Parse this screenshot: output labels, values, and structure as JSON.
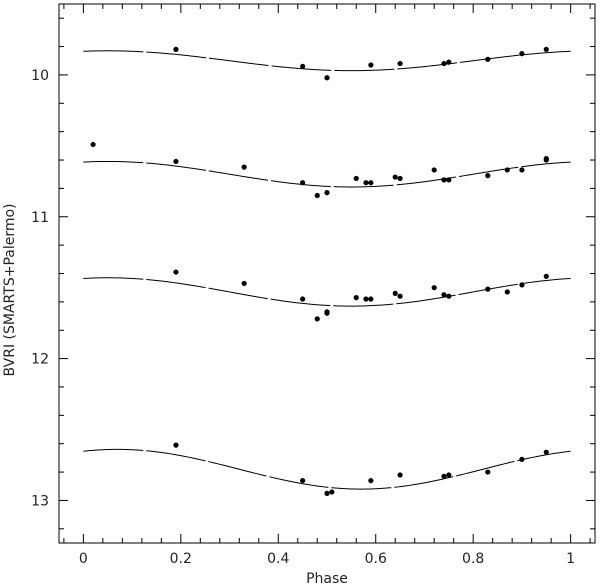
{
  "chart_data": {
    "type": "scatter",
    "title": "",
    "xlabel": "Phase",
    "ylabel": "BVRI (SMARTS+Palermo)",
    "xlim": [
      -0.05,
      1.05
    ],
    "ylim": [
      13.3,
      9.5
    ],
    "y_inverted": true,
    "grid": false,
    "legend": "none",
    "x_ticks": [
      "0",
      "0.2",
      "0.4",
      "0.6",
      "0.8",
      "1"
    ],
    "y_ticks": [
      "10",
      "11",
      "12",
      "13"
    ],
    "colors": {
      "points": "#000000",
      "curve": "#000000",
      "axis": "#000000"
    },
    "series": [
      {
        "points": [
          [
            0.19,
            9.82
          ],
          [
            0.45,
            9.94
          ],
          [
            0.5,
            10.02
          ],
          [
            0.59,
            9.93
          ],
          [
            0.65,
            9.92
          ],
          [
            0.74,
            9.92
          ],
          [
            0.75,
            9.91
          ],
          [
            0.83,
            9.89
          ],
          [
            0.9,
            9.85
          ],
          [
            0.95,
            9.82
          ]
        ],
        "fit": {
          "mean": 9.9,
          "amplitude": 0.07,
          "phase_min": 0.55
        }
      },
      {
        "points": [
          [
            0.02,
            10.49
          ],
          [
            0.19,
            10.61
          ],
          [
            0.33,
            10.65
          ],
          [
            0.45,
            10.76
          ],
          [
            0.48,
            10.85
          ],
          [
            0.5,
            10.83
          ],
          [
            0.56,
            10.73
          ],
          [
            0.58,
            10.76
          ],
          [
            0.59,
            10.76
          ],
          [
            0.64,
            10.72
          ],
          [
            0.65,
            10.73
          ],
          [
            0.72,
            10.67
          ],
          [
            0.74,
            10.74
          ],
          [
            0.75,
            10.74
          ],
          [
            0.83,
            10.71
          ],
          [
            0.87,
            10.67
          ],
          [
            0.9,
            10.67
          ],
          [
            0.95,
            10.59
          ],
          [
            0.95,
            10.6
          ]
        ],
        "fit": {
          "mean": 10.7,
          "amplitude": 0.09,
          "phase_min": 0.55
        }
      },
      {
        "points": [
          [
            0.19,
            11.39
          ],
          [
            0.33,
            11.47
          ],
          [
            0.45,
            11.58
          ],
          [
            0.48,
            11.72
          ],
          [
            0.5,
            11.68
          ],
          [
            0.5,
            11.67
          ],
          [
            0.56,
            11.57
          ],
          [
            0.58,
            11.58
          ],
          [
            0.59,
            11.58
          ],
          [
            0.64,
            11.54
          ],
          [
            0.65,
            11.56
          ],
          [
            0.72,
            11.5
          ],
          [
            0.74,
            11.55
          ],
          [
            0.75,
            11.56
          ],
          [
            0.83,
            11.51
          ],
          [
            0.87,
            11.53
          ],
          [
            0.9,
            11.48
          ],
          [
            0.95,
            11.42
          ]
        ],
        "fit": {
          "mean": 11.53,
          "amplitude": 0.1,
          "phase_min": 0.55
        }
      },
      {
        "points": [
          [
            0.19,
            12.61
          ],
          [
            0.45,
            12.86
          ],
          [
            0.5,
            12.95
          ],
          [
            0.51,
            12.94
          ],
          [
            0.59,
            12.86
          ],
          [
            0.65,
            12.82
          ],
          [
            0.74,
            12.83
          ],
          [
            0.75,
            12.82
          ],
          [
            0.83,
            12.8
          ],
          [
            0.9,
            12.71
          ],
          [
            0.95,
            12.66
          ]
        ],
        "fit": {
          "mean": 12.78,
          "amplitude": 0.14,
          "phase_min": 0.57
        }
      }
    ]
  }
}
